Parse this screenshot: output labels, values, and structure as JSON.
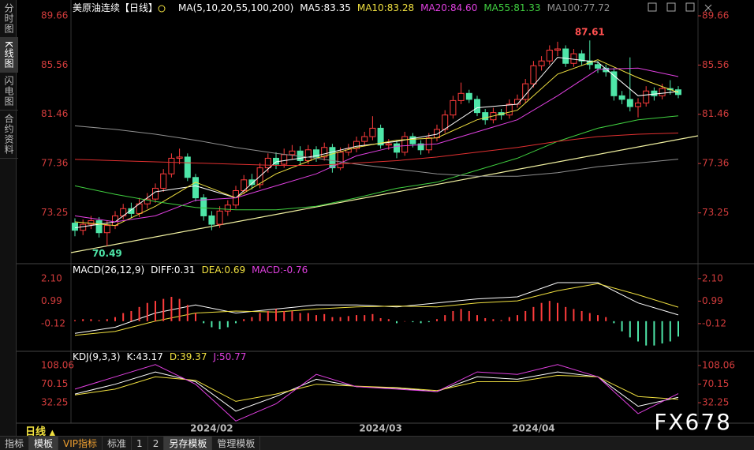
{
  "sidebar": [
    "分时图",
    "K线图",
    "闪电图",
    "合约资料"
  ],
  "toolbar": {
    "period": "日线",
    "arrow": "▲",
    "tabs": [
      "指标",
      "模板",
      "VIP指标",
      "标准",
      "1",
      "2",
      "另存模板",
      "管理模板"
    ]
  },
  "watermark": "FX678",
  "chart_data": [
    {
      "type": "candlestick",
      "title": "美原油连续【日线】",
      "indicator": "MA(5,10,20,55,100,200)",
      "up_color": "#ff3c3c",
      "down_color": "#4ee6a8",
      "categories": [
        null,
        null,
        null,
        null,
        null,
        null,
        null,
        null,
        null,
        null,
        null,
        null,
        null,
        null,
        null,
        null,
        null,
        "2024/02",
        null,
        null,
        null,
        null,
        null,
        null,
        null,
        null,
        null,
        null,
        null,
        null,
        null,
        null,
        null,
        null,
        null,
        null,
        null,
        null,
        "2024/03",
        null,
        null,
        null,
        null,
        null,
        null,
        null,
        null,
        null,
        null,
        null,
        null,
        null,
        null,
        null,
        null,
        null,
        null,
        "2024/04",
        null,
        null,
        null,
        null,
        null,
        null,
        null,
        null,
        null,
        null,
        null,
        null,
        null,
        null,
        null,
        null,
        null,
        null
      ],
      "open": [
        72.4,
        71.8,
        72.3,
        72.6,
        71.6,
        72.2,
        73.0,
        73.6,
        73.2,
        74.0,
        74.4,
        75.3,
        76.5,
        77.8,
        77.9,
        76.2,
        74.5,
        73.0,
        72.3,
        73.4,
        73.9,
        75.1,
        76.0,
        75.6,
        77.0,
        77.8,
        77.3,
        78.1,
        78.4,
        77.6,
        78.5,
        77.9,
        78.7,
        77.0,
        78.3,
        78.6,
        79.2,
        79.6,
        80.3,
        78.9,
        79.0,
        78.3,
        79.6,
        79.0,
        78.5,
        79.5,
        80.2,
        81.4,
        82.6,
        83.2,
        82.7,
        81.6,
        81.0,
        81.6,
        81.4,
        82.3,
        82.7,
        84.0,
        85.5,
        85.9,
        86.8,
        86.9,
        85.7,
        86.5,
        85.9,
        85.6,
        85.3,
        85.0,
        83.0,
        82.7,
        82.1,
        82.4,
        83.4,
        83.0,
        83.6,
        83.5
      ],
      "high": [
        72.8,
        72.7,
        73.0,
        72.9,
        72.6,
        73.4,
        74.0,
        74.1,
        74.5,
        74.9,
        75.7,
        76.9,
        78.2,
        78.6,
        78.2,
        76.5,
        74.8,
        73.4,
        73.8,
        74.3,
        75.5,
        76.4,
        76.5,
        77.4,
        78.2,
        78.3,
        78.6,
        78.9,
        78.8,
        78.9,
        78.8,
        79.1,
        79.0,
        78.7,
        79.0,
        79.6,
        80.0,
        81.3,
        80.6,
        79.4,
        79.3,
        80.0,
        79.9,
        79.3,
        79.9,
        80.6,
        81.8,
        83.0,
        84.1,
        83.5,
        83.0,
        81.9,
        82.0,
        81.9,
        82.7,
        83.1,
        84.4,
        85.9,
        86.3,
        87.2,
        87.5,
        87.2,
        86.9,
        86.8,
        87.61,
        85.9,
        85.6,
        85.3,
        83.4,
        86.2,
        82.8,
        83.8,
        83.7,
        84.0,
        84.3,
        83.8
      ],
      "low": [
        71.3,
        71.4,
        71.9,
        71.2,
        70.49,
        71.9,
        72.7,
        72.8,
        72.9,
        73.6,
        74.1,
        75.0,
        76.2,
        77.3,
        75.9,
        74.2,
        72.6,
        71.8,
        72.0,
        73.0,
        73.6,
        74.8,
        75.2,
        75.3,
        76.6,
        76.9,
        77.0,
        77.7,
        77.2,
        77.3,
        77.5,
        77.6,
        76.6,
        76.8,
        78.0,
        78.3,
        78.9,
        79.3,
        78.6,
        78.5,
        77.8,
        78.0,
        78.7,
        78.1,
        78.2,
        79.2,
        79.9,
        81.1,
        82.3,
        82.4,
        81.3,
        80.6,
        80.7,
        81.0,
        81.1,
        82.0,
        82.4,
        83.7,
        85.1,
        85.6,
        86.3,
        85.4,
        85.4,
        85.5,
        85.2,
        84.9,
        84.6,
        82.6,
        82.3,
        81.7,
        81.2,
        82.1,
        82.6,
        82.7,
        83.1,
        82.8
      ],
      "close": [
        71.8,
        72.3,
        72.6,
        71.6,
        72.2,
        73.0,
        73.6,
        73.2,
        74.0,
        74.4,
        75.3,
        76.5,
        77.8,
        77.9,
        76.2,
        74.5,
        73.0,
        72.3,
        73.4,
        73.9,
        75.1,
        76.0,
        75.6,
        77.0,
        77.8,
        77.3,
        78.1,
        78.4,
        77.6,
        78.5,
        77.9,
        78.7,
        77.0,
        78.3,
        78.6,
        79.2,
        79.6,
        80.3,
        78.9,
        79.0,
        78.3,
        79.6,
        79.0,
        78.5,
        79.5,
        80.2,
        81.4,
        82.6,
        83.2,
        82.7,
        81.6,
        81.0,
        81.6,
        81.4,
        82.3,
        82.7,
        84.0,
        85.5,
        85.9,
        86.8,
        86.9,
        85.7,
        86.5,
        85.9,
        85.6,
        85.3,
        85.0,
        83.0,
        82.7,
        82.1,
        82.4,
        83.4,
        83.0,
        83.6,
        83.5,
        83.1
      ],
      "annotations": [
        87.61,
        70.49
      ],
      "series": [
        {
          "name": "MA5:83.35",
          "color": "#ffffff",
          "x": [
            0,
            5,
            10,
            15,
            20,
            25,
            30,
            35,
            40,
            45,
            50,
            55,
            60,
            65,
            70,
            75
          ],
          "values": [
            72,
            72.5,
            75,
            75.5,
            74.5,
            77.5,
            78,
            78.8,
            79.2,
            79.8,
            82,
            82.3,
            86.2,
            85.8,
            83,
            83.35
          ]
        },
        {
          "name": "MA10:83.28",
          "color": "#f0e040",
          "x": [
            0,
            5,
            10,
            15,
            20,
            25,
            30,
            35,
            40,
            45,
            50,
            55,
            60,
            65,
            70,
            75
          ],
          "values": [
            72.5,
            72.2,
            73.8,
            75.8,
            74.5,
            76.5,
            77.8,
            78.7,
            79.3,
            79.5,
            81,
            81.8,
            84.8,
            86,
            84.5,
            83.28
          ]
        },
        {
          "name": "MA20:84.60",
          "color": "#e040e0",
          "x": [
            0,
            5,
            10,
            15,
            20,
            25,
            30,
            35,
            40,
            45,
            50,
            55,
            60,
            65,
            70,
            75
          ],
          "values": [
            73,
            72.5,
            73,
            74.3,
            74.5,
            75.5,
            76.5,
            78,
            78.8,
            79,
            80,
            81,
            83,
            85.2,
            85.3,
            84.6
          ]
        },
        {
          "name": "MA55:81.33",
          "color": "#40d040",
          "x": [
            0,
            5,
            10,
            15,
            20,
            25,
            30,
            35,
            40,
            45,
            50,
            55,
            60,
            65,
            70,
            75
          ],
          "values": [
            75.5,
            74.8,
            74.2,
            73.7,
            73.5,
            73.5,
            73.8,
            74.5,
            75.3,
            75.8,
            76.8,
            77.8,
            79.2,
            80.3,
            81,
            81.33
          ]
        },
        {
          "name": "MA100:77.72",
          "color": "#909090",
          "x": [
            0,
            5,
            10,
            15,
            20,
            25,
            30,
            35,
            40,
            45,
            50,
            55,
            60,
            65,
            70,
            75
          ],
          "values": [
            80.5,
            80.2,
            79.8,
            79.3,
            78.7,
            78.2,
            77.8,
            77.3,
            76.9,
            76.5,
            76.3,
            76.3,
            76.6,
            77.1,
            77.4,
            77.72
          ]
        },
        {
          "color": "#e03030",
          "x": [
            0,
            5,
            10,
            15,
            20,
            25,
            30,
            35,
            40,
            45,
            50,
            55,
            60,
            65,
            70,
            75
          ],
          "values": [
            77.7,
            77.6,
            77.5,
            77.4,
            77.3,
            77.2,
            77.2,
            77.4,
            77.6,
            77.9,
            78.3,
            78.7,
            79.2,
            79.6,
            79.8,
            79.9
          ]
        }
      ],
      "ylim": [
        69.15,
        90.45
      ],
      "yticks": [
        89.66,
        85.56,
        81.46,
        77.36,
        73.25
      ]
    },
    {
      "type": "macd",
      "title": "MACD(26,12,9)",
      "series": [
        {
          "name": "DIFF:0.31",
          "color": "#ffffff",
          "x": [
            0,
            5,
            10,
            15,
            20,
            25,
            30,
            35,
            40,
            45,
            50,
            55,
            60,
            65,
            70,
            75
          ],
          "values": [
            -0.6,
            -0.3,
            0.4,
            0.8,
            0.4,
            0.6,
            0.8,
            0.8,
            0.7,
            0.9,
            1.1,
            1.2,
            1.9,
            1.9,
            0.9,
            0.31
          ]
        },
        {
          "name": "DEA:0.69",
          "color": "#f0e040",
          "x": [
            0,
            5,
            10,
            15,
            20,
            25,
            30,
            35,
            40,
            45,
            50,
            55,
            60,
            65,
            70,
            75
          ],
          "values": [
            -0.7,
            -0.5,
            0.0,
            0.4,
            0.5,
            0.45,
            0.6,
            0.7,
            0.75,
            0.7,
            0.9,
            1.0,
            1.5,
            1.85,
            1.3,
            0.69
          ]
        },
        {
          "name": "MACD:-0.76",
          "color": "#e040e0",
          "kind": "bar",
          "up_color": "#ff3c3c",
          "down_color": "#4ee6a8",
          "values": [
            0.05,
            0.1,
            0.1,
            0.05,
            0.1,
            0.2,
            0.4,
            0.5,
            0.7,
            0.9,
            1.0,
            1.1,
            1.2,
            1.1,
            0.8,
            0.4,
            -0.1,
            -0.3,
            -0.4,
            -0.3,
            -0.1,
            0.1,
            0.2,
            0.4,
            0.5,
            0.6,
            0.5,
            0.5,
            0.4,
            0.4,
            0.3,
            0.35,
            0.2,
            0.2,
            0.25,
            0.3,
            0.3,
            0.35,
            0.15,
            0.1,
            -0.1,
            0.0,
            -0.05,
            -0.1,
            -0.05,
            0.1,
            0.3,
            0.5,
            0.6,
            0.5,
            0.3,
            0.15,
            0.1,
            0.05,
            0.2,
            0.3,
            0.5,
            0.7,
            0.9,
            1.0,
            0.9,
            0.7,
            0.6,
            0.5,
            0.4,
            0.3,
            0.2,
            -0.1,
            -0.5,
            -0.8,
            -1.0,
            -1.2,
            -1.2,
            -1.1,
            -1.0,
            -0.76
          ]
        }
      ],
      "ylim": [
        -1.37,
        2.68
      ],
      "yticks": [
        {
          "value": 2.1,
          "label": "2.10"
        },
        0.99,
        -0.12
      ]
    },
    {
      "type": "kdj",
      "title": "KDJ(9,3,3)",
      "series": [
        {
          "name": "K:43.17",
          "color": "#ffffff",
          "x": [
            0,
            5,
            10,
            15,
            20,
            25,
            30,
            35,
            40,
            45,
            50,
            55,
            60,
            65,
            70,
            75
          ],
          "values": [
            50,
            70,
            95,
            75,
            15,
            45,
            80,
            65,
            62,
            55,
            85,
            80,
            95,
            85,
            25,
            43.17
          ]
        },
        {
          "name": "D:39.37",
          "color": "#f0e040",
          "x": [
            0,
            5,
            10,
            15,
            20,
            25,
            30,
            35,
            40,
            45,
            50,
            55,
            60,
            65,
            70,
            75
          ],
          "values": [
            48,
            60,
            85,
            78,
            35,
            50,
            70,
            66,
            63,
            57,
            75,
            75,
            88,
            85,
            45,
            39.37
          ]
        },
        {
          "name": "J:50.77",
          "color": "#e040e0",
          "x": [
            0,
            5,
            10,
            15,
            20,
            25,
            30,
            35,
            40,
            45,
            50,
            55,
            60,
            65,
            70,
            75
          ],
          "values": [
            60,
            85,
            110,
            70,
            -5,
            30,
            90,
            65,
            60,
            55,
            95,
            90,
            110,
            85,
            10,
            50.77
          ]
        }
      ],
      "ylim": [
        -7.8,
        132.2
      ],
      "yticks": [
        108.06,
        70.15,
        32.25
      ]
    }
  ]
}
